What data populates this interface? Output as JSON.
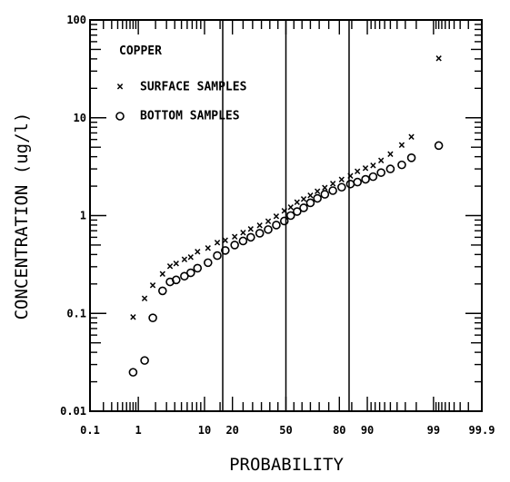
{
  "chart_data": {
    "type": "scatter",
    "title": "",
    "xlabel": "PROBABILITY",
    "ylabel": "CONCENTRATION (ug/l)",
    "xscale": "normal-probability",
    "yscale": "log",
    "xlim": [
      0.1,
      99.9
    ],
    "ylim": [
      0.01,
      100
    ],
    "x_tick_labels": [
      "0.1",
      "1",
      "10",
      "20",
      "50",
      "80",
      "90",
      "99",
      "99.9"
    ],
    "y_tick_labels": [
      "0.01",
      "0.1",
      "1",
      "10",
      "100"
    ],
    "grid": "vertical lines at 16, 50, 84",
    "grid_lines_x": [
      16,
      50,
      84
    ],
    "legend": {
      "placement": "top-left",
      "title": "COPPER",
      "entries": [
        {
          "marker": "x",
          "label": "SURFACE SAMPLES"
        },
        {
          "marker": "o",
          "label": "BOTTOM SAMPLES"
        }
      ]
    },
    "series": [
      {
        "name": "SURFACE SAMPLES",
        "marker": "x",
        "points": [
          {
            "x": 0.8,
            "y": 0.09
          },
          {
            "x": 1.3,
            "y": 0.14
          },
          {
            "x": 1.8,
            "y": 0.19
          },
          {
            "x": 2.6,
            "y": 0.25
          },
          {
            "x": 3.4,
            "y": 0.3
          },
          {
            "x": 4.2,
            "y": 0.32
          },
          {
            "x": 5.5,
            "y": 0.35
          },
          {
            "x": 6.7,
            "y": 0.37
          },
          {
            "x": 8.2,
            "y": 0.42
          },
          {
            "x": 11,
            "y": 0.46
          },
          {
            "x": 14,
            "y": 0.52
          },
          {
            "x": 17,
            "y": 0.55
          },
          {
            "x": 21,
            "y": 0.6
          },
          {
            "x": 25,
            "y": 0.66
          },
          {
            "x": 29,
            "y": 0.72
          },
          {
            "x": 34,
            "y": 0.78
          },
          {
            "x": 39,
            "y": 0.86
          },
          {
            "x": 44,
            "y": 0.97
          },
          {
            "x": 49,
            "y": 1.1
          },
          {
            "x": 53,
            "y": 1.2
          },
          {
            "x": 57,
            "y": 1.35
          },
          {
            "x": 61,
            "y": 1.45
          },
          {
            "x": 65,
            "y": 1.58
          },
          {
            "x": 69,
            "y": 1.75
          },
          {
            "x": 73,
            "y": 1.9
          },
          {
            "x": 77,
            "y": 2.1
          },
          {
            "x": 81,
            "y": 2.3
          },
          {
            "x": 84.5,
            "y": 2.5
          },
          {
            "x": 87,
            "y": 2.8
          },
          {
            "x": 89.5,
            "y": 3.0
          },
          {
            "x": 91.5,
            "y": 3.2
          },
          {
            "x": 93.3,
            "y": 3.6
          },
          {
            "x": 95,
            "y": 4.2
          },
          {
            "x": 96.6,
            "y": 5.2
          },
          {
            "x": 97.6,
            "y": 6.3
          },
          {
            "x": 99.2,
            "y": 40
          }
        ]
      },
      {
        "name": "BOTTOM SAMPLES",
        "marker": "o",
        "points": [
          {
            "x": 0.8,
            "y": 0.025
          },
          {
            "x": 1.3,
            "y": 0.033
          },
          {
            "x": 1.8,
            "y": 0.09
          },
          {
            "x": 2.6,
            "y": 0.17
          },
          {
            "x": 3.4,
            "y": 0.21
          },
          {
            "x": 4.2,
            "y": 0.22
          },
          {
            "x": 5.5,
            "y": 0.24
          },
          {
            "x": 6.7,
            "y": 0.26
          },
          {
            "x": 8.2,
            "y": 0.29
          },
          {
            "x": 11,
            "y": 0.33
          },
          {
            "x": 14,
            "y": 0.39
          },
          {
            "x": 17,
            "y": 0.44
          },
          {
            "x": 21,
            "y": 0.5
          },
          {
            "x": 25,
            "y": 0.55
          },
          {
            "x": 29,
            "y": 0.6
          },
          {
            "x": 34,
            "y": 0.66
          },
          {
            "x": 39,
            "y": 0.72
          },
          {
            "x": 44,
            "y": 0.8
          },
          {
            "x": 49,
            "y": 0.88
          },
          {
            "x": 53,
            "y": 1.0
          },
          {
            "x": 57,
            "y": 1.1
          },
          {
            "x": 61,
            "y": 1.2
          },
          {
            "x": 65,
            "y": 1.35
          },
          {
            "x": 69,
            "y": 1.5
          },
          {
            "x": 73,
            "y": 1.65
          },
          {
            "x": 77,
            "y": 1.8
          },
          {
            "x": 81,
            "y": 1.95
          },
          {
            "x": 84.5,
            "y": 2.1
          },
          {
            "x": 87,
            "y": 2.2
          },
          {
            "x": 89.5,
            "y": 2.35
          },
          {
            "x": 91.5,
            "y": 2.5
          },
          {
            "x": 93.3,
            "y": 2.75
          },
          {
            "x": 95,
            "y": 3.0
          },
          {
            "x": 96.6,
            "y": 3.3
          },
          {
            "x": 97.6,
            "y": 3.9
          },
          {
            "x": 99.2,
            "y": 5.2
          }
        ]
      }
    ]
  }
}
